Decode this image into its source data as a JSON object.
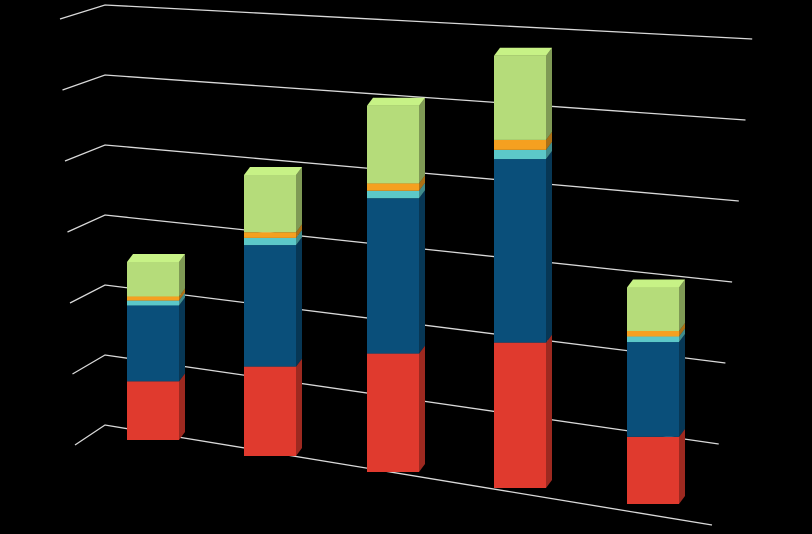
{
  "chart_data": {
    "type": "bar3d_stacked",
    "categories": [
      null,
      null,
      null,
      null,
      null
    ],
    "series": [
      {
        "color": "#e03a2e",
        "values": [
          0.85,
          1.25,
          1.6,
          1.9,
          0.85
        ]
      },
      {
        "color": "#0a4f7a",
        "values": [
          1.1,
          1.7,
          2.1,
          2.4,
          1.2
        ]
      },
      {
        "color": "#5cc8c8",
        "values": [
          0.07,
          0.1,
          0.1,
          0.12,
          0.07
        ]
      },
      {
        "color": "#f5a020",
        "values": [
          0.06,
          0.08,
          0.1,
          0.13,
          0.07
        ]
      },
      {
        "color": "#b5dc7a",
        "values": [
          0.5,
          0.8,
          1.05,
          1.1,
          0.55
        ]
      }
    ],
    "ylim": [
      0,
      6
    ],
    "yticks": [
      0,
      1,
      2,
      3,
      4,
      5,
      6
    ],
    "grid": true
  }
}
